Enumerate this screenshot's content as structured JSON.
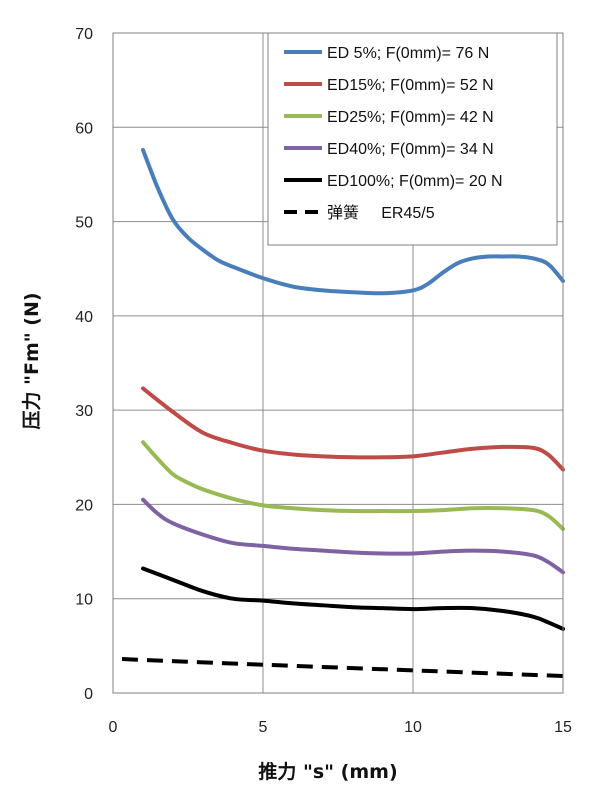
{
  "chart_data": {
    "type": "line",
    "title": "",
    "xlabel": "推力 \"s\" (mm)",
    "ylabel": "压力 \"Fm\" (N)",
    "xlim": [
      0,
      15
    ],
    "ylim": [
      0,
      70
    ],
    "x_ticks": [
      "0",
      "5",
      "10",
      "15"
    ],
    "y_ticks": [
      "0",
      "10",
      "20",
      "30",
      "40",
      "50",
      "60",
      "70"
    ],
    "grid": true,
    "legend_position": "top-right",
    "series": [
      {
        "name": "ED 5%; F(0mm)= 76 N",
        "color": "#4a7ebb",
        "dash": "solid",
        "x": [
          1,
          1.5,
          2,
          2.5,
          3,
          3.5,
          4,
          5,
          6,
          7,
          8,
          9,
          10,
          10.5,
          11,
          11.5,
          12,
          12.5,
          13,
          13.5,
          14,
          14.5,
          15
        ],
        "y": [
          57.6,
          53.5,
          50.2,
          48.3,
          47.0,
          45.9,
          45.2,
          44.0,
          43.1,
          42.7,
          42.5,
          42.4,
          42.7,
          43.4,
          44.6,
          45.6,
          46.1,
          46.3,
          46.3,
          46.3,
          46.1,
          45.5,
          43.7
        ]
      },
      {
        "name": "ED15%; F(0mm)= 52 N",
        "color": "#be4b48",
        "dash": "solid",
        "x": [
          1,
          2,
          3,
          4,
          5,
          6,
          7,
          8,
          9,
          10,
          11,
          12,
          13,
          14,
          14.5,
          15
        ],
        "y": [
          32.3,
          29.8,
          27.6,
          26.5,
          25.7,
          25.3,
          25.1,
          25.0,
          25.0,
          25.1,
          25.5,
          25.9,
          26.1,
          26.0,
          25.3,
          23.7
        ]
      },
      {
        "name": "ED25%; F(0mm)= 42 N",
        "color": "#98b954",
        "dash": "solid",
        "x": [
          1,
          1.5,
          2,
          2.5,
          3,
          4,
          5,
          6,
          7,
          8,
          9,
          10,
          11,
          12,
          13,
          14,
          14.5,
          15
        ],
        "y": [
          26.6,
          24.8,
          23.2,
          22.3,
          21.6,
          20.6,
          19.9,
          19.6,
          19.4,
          19.3,
          19.3,
          19.3,
          19.4,
          19.6,
          19.6,
          19.4,
          18.8,
          17.4
        ]
      },
      {
        "name": "ED40%; F(0mm)= 34 N",
        "color": "#7e62a1",
        "dash": "solid",
        "x": [
          1,
          1.5,
          2,
          3,
          4,
          5,
          6,
          7,
          8,
          9,
          10,
          11,
          12,
          13,
          14,
          14.5,
          15
        ],
        "y": [
          20.5,
          19.0,
          18.0,
          16.8,
          15.9,
          15.6,
          15.3,
          15.1,
          14.9,
          14.8,
          14.8,
          15.0,
          15.1,
          15.0,
          14.6,
          13.9,
          12.8
        ]
      },
      {
        "name": "ED100%; F(0mm)= 20 N",
        "color": "#000000",
        "dash": "solid",
        "x": [
          1,
          2,
          3,
          4,
          5,
          6,
          7,
          8,
          9,
          10,
          11,
          12,
          13,
          14,
          14.5,
          15
        ],
        "y": [
          13.2,
          12.0,
          10.8,
          10.0,
          9.8,
          9.5,
          9.3,
          9.1,
          9.0,
          8.9,
          9.0,
          9.0,
          8.7,
          8.1,
          7.5,
          6.8
        ]
      },
      {
        "name": "弹簧     ER45/5",
        "color": "#000000",
        "dash": "dashed",
        "x": [
          0.3,
          5,
          10,
          15
        ],
        "y": [
          3.6,
          3.0,
          2.4,
          1.8
        ]
      }
    ]
  }
}
